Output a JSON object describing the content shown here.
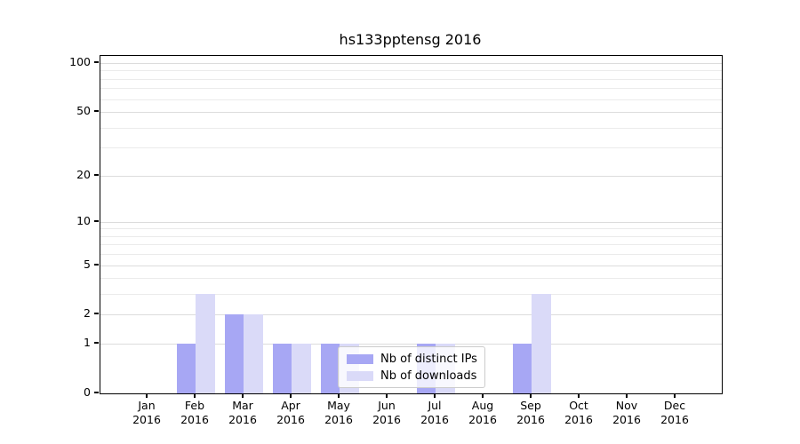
{
  "title": "hs133pptensg 2016",
  "legend": {
    "position": "lower center",
    "items": [
      {
        "label": "Nb of distinct IPs",
        "series": "distinct_ips"
      },
      {
        "label": "Nb of downloads",
        "series": "downloads"
      }
    ]
  },
  "axes": {
    "y_tick_labels": [
      "100",
      "50",
      "20",
      "10",
      "5",
      "2",
      "1",
      "0"
    ],
    "x_tick_months": [
      "Jan",
      "Feb",
      "Mar",
      "Apr",
      "May",
      "Jun",
      "Jul",
      "Aug",
      "Sep",
      "Oct",
      "Nov",
      "Dec"
    ],
    "x_tick_year": "2016"
  },
  "colors": {
    "distinct_ips": "#a7a7f4",
    "downloads": "#dadaf8",
    "major_grid": "#dcdcdc",
    "minor_grid": "#ebebeb",
    "axis": "#000000",
    "legend_border": "#cccccc"
  },
  "chart_data": {
    "type": "bar",
    "title": "hs133pptensg 2016",
    "categories": [
      "Jan 2016",
      "Feb 2016",
      "Mar 2016",
      "Apr 2016",
      "May 2016",
      "Jun 2016",
      "Jul 2016",
      "Aug 2016",
      "Sep 2016",
      "Oct 2016",
      "Nov 2016",
      "Dec 2016"
    ],
    "series": [
      {
        "name": "Nb of distinct IPs",
        "color": "#a7a7f4",
        "values": [
          0,
          1,
          2,
          1,
          1,
          0,
          1,
          0,
          1,
          0,
          0,
          0
        ]
      },
      {
        "name": "Nb of downloads",
        "color": "#dadaf8",
        "values": [
          0,
          3,
          2,
          1,
          1,
          0,
          1,
          0,
          3,
          0,
          0,
          0
        ]
      }
    ],
    "yscale": "log1p",
    "ylim": [
      0,
      100
    ],
    "y_major_ticks": [
      0,
      1,
      2,
      5,
      10,
      20,
      50,
      100
    ],
    "y_minor_ticks": [
      3,
      4,
      6,
      7,
      8,
      9,
      30,
      40,
      60,
      70,
      80,
      90
    ],
    "grid": true,
    "xlabel": "",
    "ylabel": "",
    "legend_position": "lower center"
  }
}
